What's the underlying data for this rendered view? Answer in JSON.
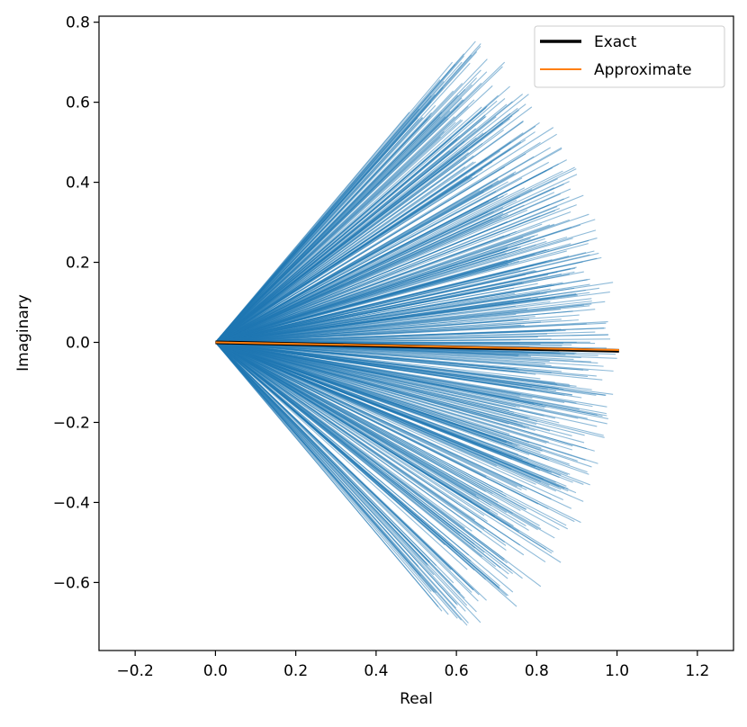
{
  "chart_data": {
    "type": "line",
    "xlabel": "Real",
    "ylabel": "Imaginary",
    "xlim": [
      -0.29,
      1.29
    ],
    "ylim": [
      -0.77,
      0.815
    ],
    "xticks": [
      -0.2,
      0.0,
      0.2,
      0.4,
      0.6,
      0.8,
      1.0,
      1.2
    ],
    "yticks": [
      -0.6,
      -0.4,
      -0.2,
      0.0,
      0.2,
      0.4,
      0.6,
      0.8
    ],
    "xtick_labels": [
      "−0.2",
      "0.0",
      "0.2",
      "0.4",
      "0.6",
      "0.8",
      "1.0",
      "1.2"
    ],
    "ytick_labels": [
      "−0.6",
      "−0.4",
      "−0.2",
      "0.0",
      "0.2",
      "0.4",
      "0.6",
      "0.8"
    ],
    "grid": false,
    "legend_position": "top-right",
    "rays": {
      "description": "many random vectors from origin",
      "origin": [
        0,
        0
      ],
      "angle_range_deg": [
        -50,
        50
      ],
      "length_range": [
        0.75,
        1.0
      ],
      "count": 600,
      "color": "#1f77b4",
      "alpha": 0.5
    },
    "series": [
      {
        "name": "Exact",
        "x": [
          0.0,
          1.005
        ],
        "y": [
          0.0,
          -0.021
        ],
        "color": "#000000"
      },
      {
        "name": "Approximate",
        "x": [
          0.0,
          1.005
        ],
        "y": [
          0.0,
          -0.019
        ],
        "color": "#ff7f0e"
      }
    ],
    "endpoints": [
      [
        0.66,
        0.74
      ],
      [
        0.59,
        0.7
      ],
      [
        0.72,
        0.7
      ],
      [
        0.78,
        0.62
      ],
      [
        0.85,
        0.52
      ],
      [
        0.83,
        0.45
      ],
      [
        0.9,
        0.42
      ],
      [
        0.93,
        0.32
      ],
      [
        0.95,
        0.21
      ],
      [
        0.99,
        0.15
      ],
      [
        0.58,
        -0.68
      ],
      [
        0.66,
        -0.7
      ],
      [
        0.75,
        -0.66
      ],
      [
        0.81,
        -0.61
      ],
      [
        0.86,
        -0.55
      ],
      [
        0.91,
        -0.45
      ],
      [
        0.93,
        -0.33
      ],
      [
        0.95,
        -0.21
      ],
      [
        0.99,
        -0.13
      ],
      [
        1.0,
        -0.04
      ]
    ]
  }
}
